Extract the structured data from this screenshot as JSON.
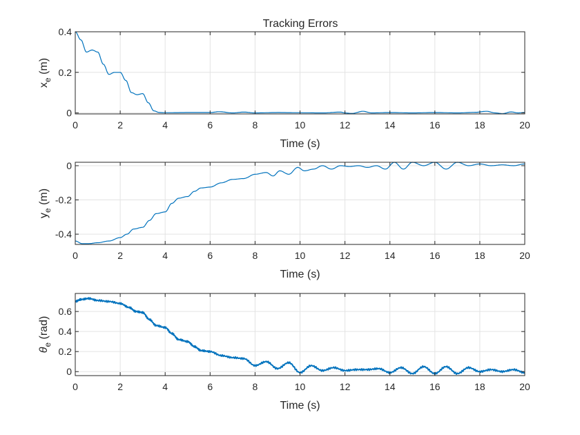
{
  "chart_data": {
    "title": "Tracking Errors",
    "type": "line",
    "color": "#0072BD",
    "grid": true,
    "panels": [
      {
        "id": "xe",
        "ylabel_main": "x",
        "ylabel_sub": "e",
        "ylabel_unit": "(m)",
        "xlabel": "Time (s)",
        "xlim": [
          0,
          20
        ],
        "ylim": [
          -0.005,
          0.4
        ],
        "yticks": [
          0,
          0.2,
          0.4
        ],
        "ytick_labels": [
          "0",
          "0.2",
          "0.4"
        ],
        "xticks": [
          0,
          2,
          4,
          6,
          8,
          10,
          12,
          14,
          16,
          18,
          20
        ],
        "xtick_labels": [
          "0",
          "2",
          "4",
          "6",
          "8",
          "10",
          "12",
          "14",
          "16",
          "18",
          "20"
        ],
        "x": [
          0,
          0.25,
          0.5,
          0.75,
          1.0,
          1.25,
          1.5,
          1.75,
          2.0,
          2.25,
          2.5,
          2.75,
          3.0,
          3.25,
          3.5,
          3.75,
          4.0,
          5.0,
          6.0,
          6.4,
          7.0,
          7.5,
          8.0,
          9.0,
          10.0,
          11.0,
          11.8,
          12.0,
          12.3,
          12.8,
          13.2,
          14.0,
          15.0,
          16.0,
          17.0,
          17.8,
          18.3,
          18.7,
          19.0,
          19.4,
          19.7,
          20.0
        ],
        "y": [
          0.4,
          0.36,
          0.3,
          0.31,
          0.3,
          0.24,
          0.19,
          0.2,
          0.2,
          0.16,
          0.1,
          0.09,
          0.095,
          0.05,
          0.01,
          0.002,
          0.001,
          0.002,
          0.002,
          0.006,
          0.0,
          0.004,
          0.0,
          0.002,
          0.001,
          0.0,
          0.004,
          0.0,
          -0.003,
          0.008,
          0.0,
          0.002,
          0.0,
          0.002,
          0.0,
          0.003,
          0.008,
          0.0,
          -0.004,
          0.005,
          0.0,
          0.002
        ]
      },
      {
        "id": "ye",
        "ylabel_main": "y",
        "ylabel_sub": "e",
        "ylabel_unit": "(m)",
        "xlabel": "Time (s)",
        "xlim": [
          0,
          20
        ],
        "ylim": [
          -0.46,
          0.02
        ],
        "yticks": [
          -0.4,
          -0.2,
          0
        ],
        "ytick_labels": [
          "-0.4",
          "-0.2",
          "0"
        ],
        "xticks": [
          0,
          2,
          4,
          6,
          8,
          10,
          12,
          14,
          16,
          18,
          20
        ],
        "xtick_labels": [
          "0",
          "2",
          "4",
          "6",
          "8",
          "10",
          "12",
          "14",
          "16",
          "18",
          "20"
        ],
        "x": [
          0,
          0.3,
          0.6,
          1.0,
          1.5,
          2.0,
          2.3,
          2.6,
          3.0,
          3.3,
          3.6,
          4.0,
          4.3,
          4.6,
          5.0,
          5.3,
          5.6,
          6.0,
          6.5,
          7.0,
          7.5,
          8.0,
          8.5,
          8.8,
          9.1,
          9.5,
          9.9,
          10.2,
          10.6,
          11.0,
          11.4,
          11.8,
          12.2,
          12.6,
          13.0,
          13.4,
          13.8,
          14.2,
          14.6,
          15.0,
          15.5,
          16.0,
          16.5,
          17.0,
          17.5,
          18.0,
          18.5,
          19.0,
          19.5,
          20.0
        ],
        "y": [
          -0.44,
          -0.455,
          -0.455,
          -0.45,
          -0.44,
          -0.42,
          -0.4,
          -0.37,
          -0.36,
          -0.32,
          -0.28,
          -0.27,
          -0.22,
          -0.19,
          -0.18,
          -0.15,
          -0.13,
          -0.125,
          -0.1,
          -0.08,
          -0.075,
          -0.05,
          -0.04,
          -0.06,
          -0.03,
          -0.05,
          -0.01,
          -0.03,
          -0.02,
          0.0,
          -0.02,
          0.0,
          -0.005,
          0.0,
          -0.01,
          0.0,
          -0.02,
          0.02,
          -0.02,
          0.02,
          0.0,
          0.02,
          -0.02,
          0.02,
          0.0,
          0.01,
          0.0,
          0.005,
          0.0,
          0.01
        ]
      },
      {
        "id": "theta",
        "ylabel_main": "θ",
        "ylabel_sub": "e",
        "ylabel_unit": "(rad)",
        "xlabel": "Time (s)",
        "xlim": [
          0,
          20
        ],
        "ylim": [
          -0.04,
          0.78
        ],
        "yticks": [
          0,
          0.2,
          0.4,
          0.6
        ],
        "ytick_labels": [
          "0",
          "0.2",
          "0.4",
          "0.6"
        ],
        "xticks": [
          0,
          2,
          4,
          6,
          8,
          10,
          12,
          14,
          16,
          18,
          20
        ],
        "xtick_labels": [
          "0",
          "2",
          "4",
          "6",
          "8",
          "10",
          "12",
          "14",
          "16",
          "18",
          "20"
        ],
        "x": [
          0,
          0.25,
          0.6,
          1.0,
          1.5,
          2.0,
          2.4,
          2.7,
          3.0,
          3.3,
          3.6,
          4.0,
          4.3,
          4.6,
          5.0,
          5.3,
          5.6,
          6.0,
          6.5,
          7.0,
          7.5,
          8.0,
          8.5,
          9.0,
          9.5,
          10.0,
          10.5,
          11.0,
          11.5,
          12.0,
          12.5,
          13.0,
          13.5,
          14.0,
          14.5,
          15.0,
          15.5,
          16.0,
          16.5,
          17.0,
          17.5,
          18.0,
          18.5,
          19.0,
          19.5,
          20.0
        ],
        "y": [
          0.7,
          0.72,
          0.73,
          0.71,
          0.7,
          0.68,
          0.64,
          0.6,
          0.59,
          0.52,
          0.46,
          0.44,
          0.38,
          0.32,
          0.3,
          0.25,
          0.21,
          0.2,
          0.16,
          0.14,
          0.13,
          0.06,
          0.1,
          0.03,
          0.09,
          -0.01,
          0.06,
          0.01,
          0.04,
          0.01,
          0.02,
          0.02,
          0.03,
          -0.01,
          0.04,
          -0.02,
          0.05,
          -0.02,
          0.05,
          -0.02,
          0.04,
          0.0,
          0.02,
          0.0,
          0.02,
          -0.01
        ]
      }
    ]
  }
}
